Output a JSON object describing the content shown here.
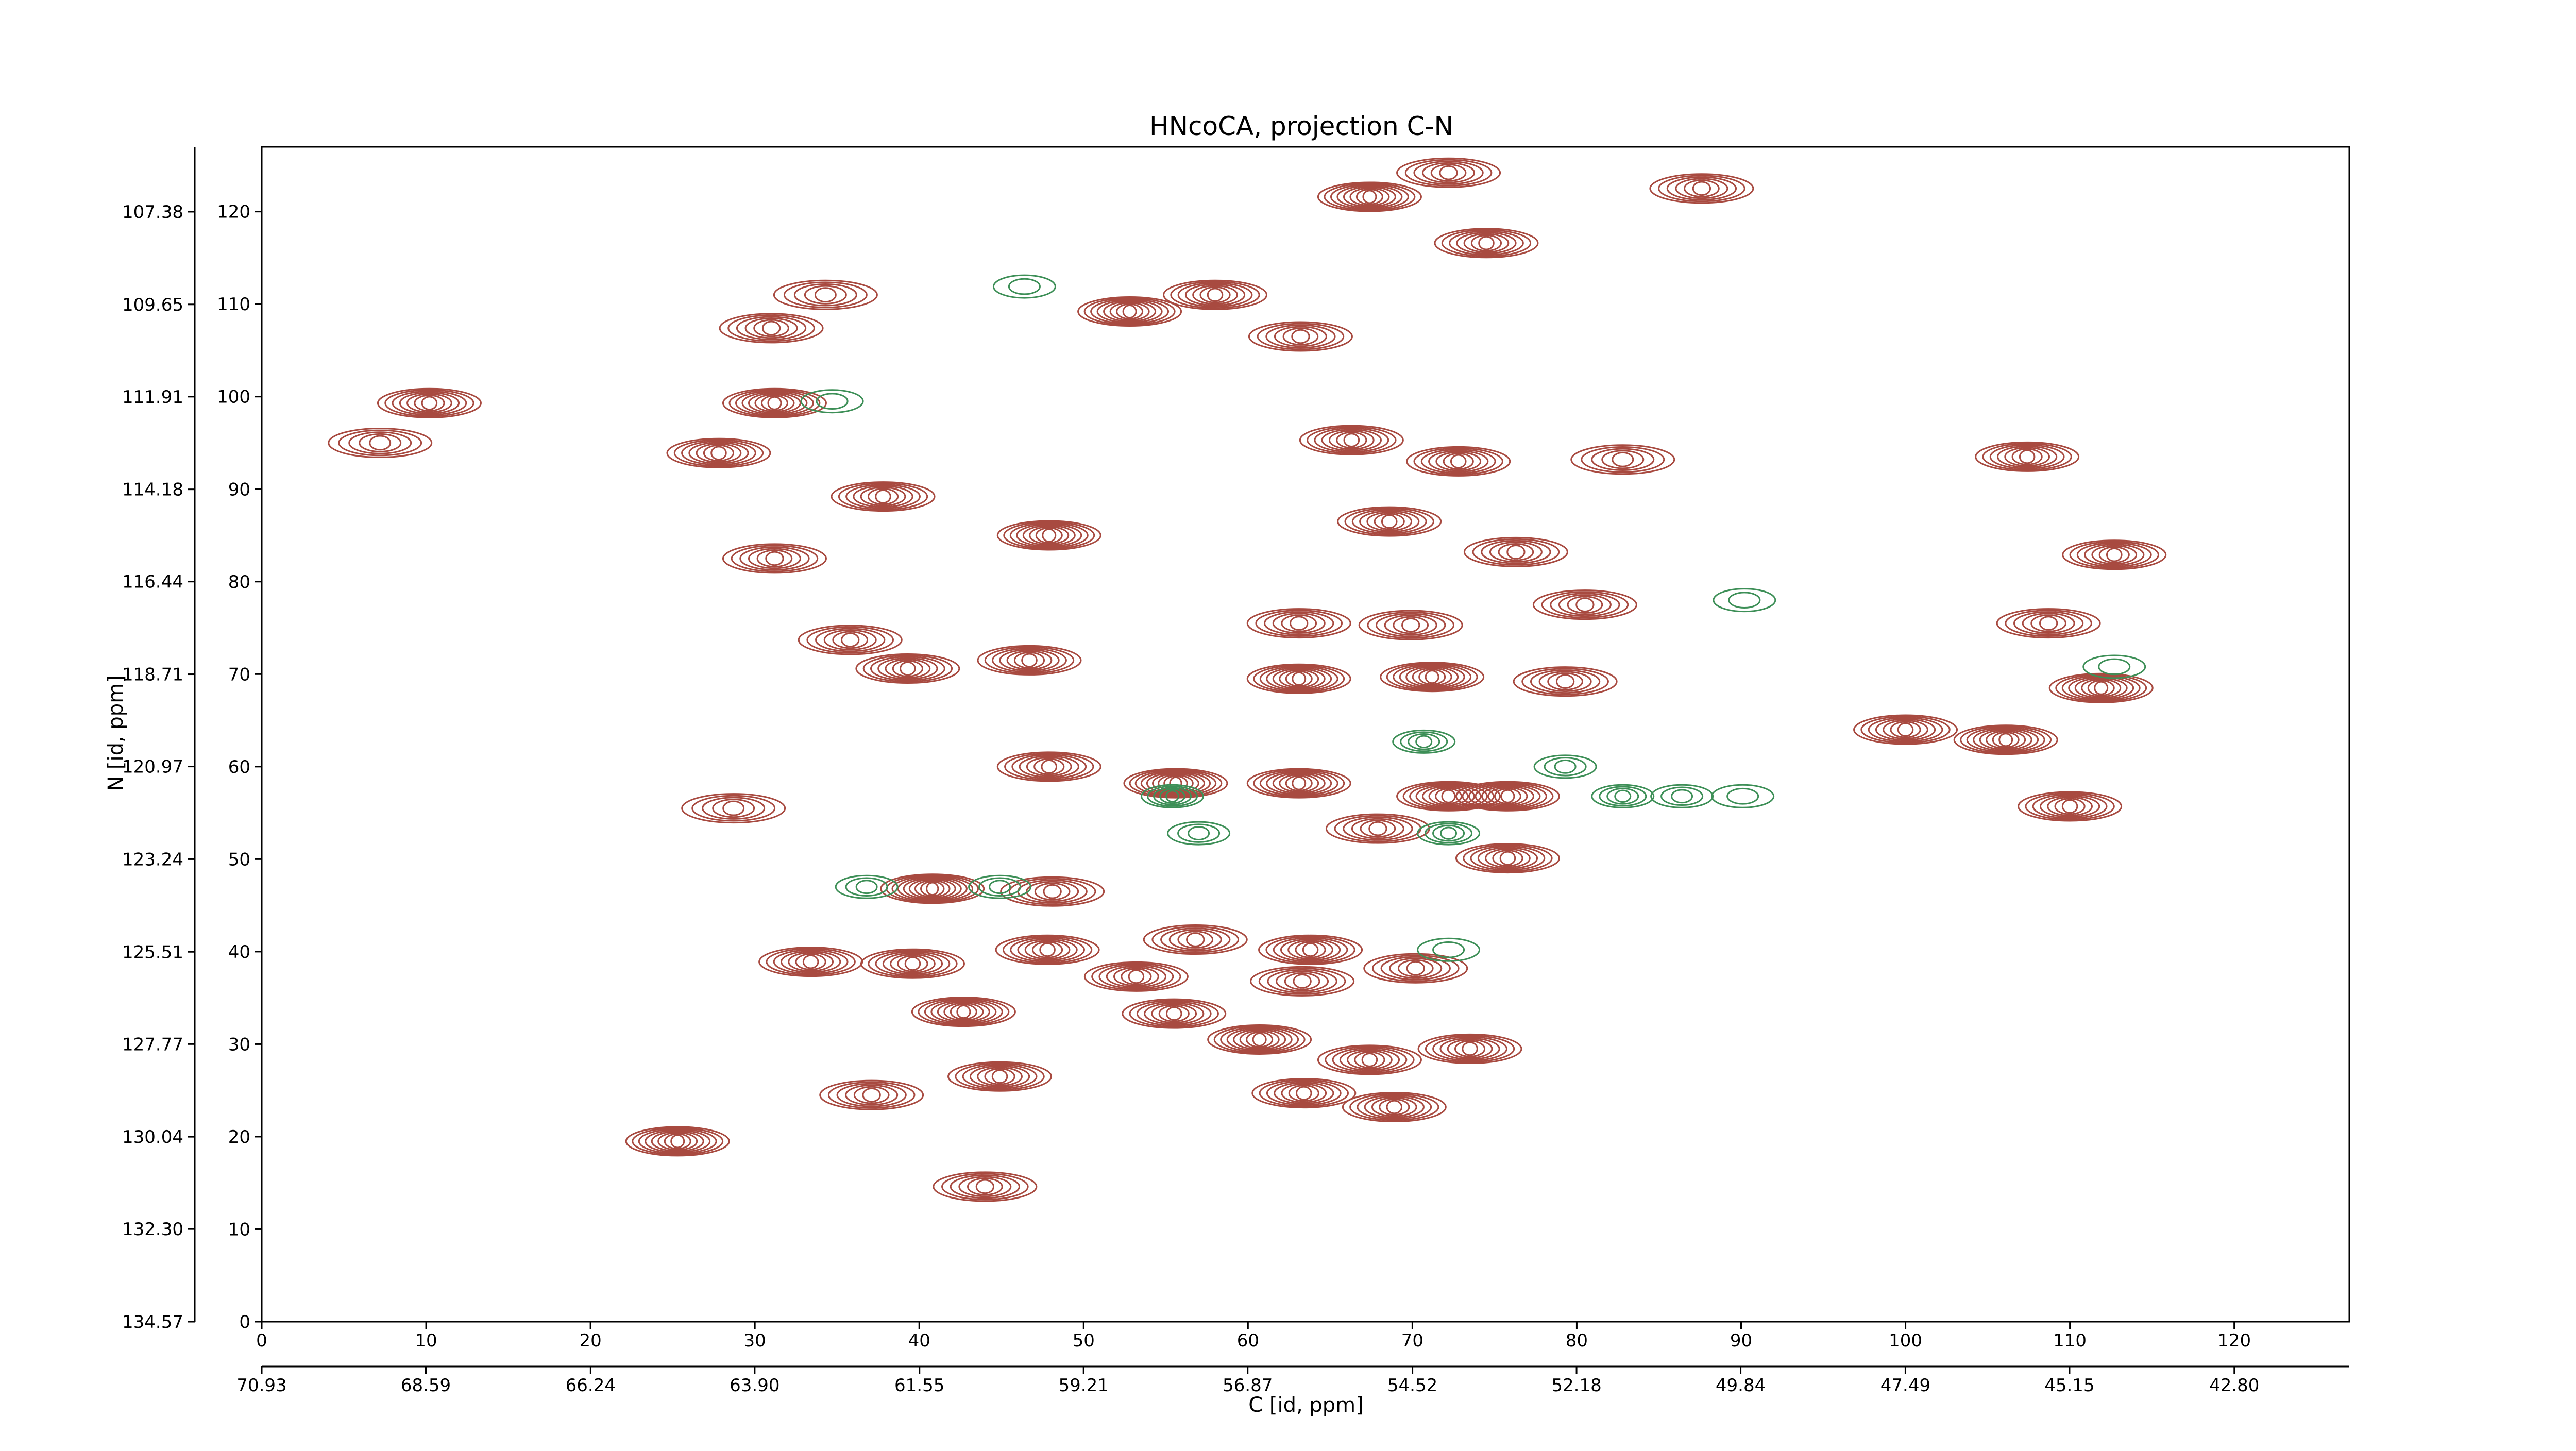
{
  "chart_data": {
    "type": "contour",
    "title": "HNcoCA, projection C-N",
    "xlabel": "C [id, ppm]",
    "ylabel": "N [id, ppm]",
    "xlim": [
      0,
      127
    ],
    "ylim": [
      0,
      127
    ],
    "xticks": [
      0,
      10,
      20,
      30,
      40,
      50,
      60,
      70,
      80,
      90,
      100,
      110,
      120
    ],
    "yticks": [
      0,
      10,
      20,
      30,
      40,
      50,
      60,
      70,
      80,
      90,
      100,
      110,
      120
    ],
    "x2lim": [
      70.93,
      41.16
    ],
    "x2ticks": [
      70.93,
      68.59,
      66.24,
      {
        "value": 63.9,
        "label": "63.90"
      },
      61.55,
      59.21,
      56.87,
      54.52,
      52.18,
      49.84,
      47.49,
      45.15,
      {
        "value": 42.8,
        "label": "42.80"
      }
    ],
    "y2lim": [
      134.57,
      105.79
    ],
    "y2ticks": [
      134.57,
      {
        "value": 132.3,
        "label": "132.30"
      },
      130.04,
      127.77,
      125.51,
      123.24,
      120.97,
      118.71,
      116.44,
      114.18,
      111.91,
      109.65,
      107.38
    ],
    "series": [
      {
        "color": "#a84a40",
        "x": [
          87.6,
          72.2,
          67.4,
          74.5,
          58,
          52.8,
          63.2,
          31,
          34.3,
          31.2,
          10.2,
          7.2,
          27.8,
          37.8,
          47.9,
          66.3,
          72.8,
          82.8,
          107.4,
          68.6,
          76.3,
          31.2,
          112.7,
          80.5,
          108.7,
          63.1,
          69.9,
          35.8,
          39.3,
          46.7,
          63.1,
          71.2,
          79.3,
          111.9,
          100,
          106.1,
          55.6,
          47.9,
          63.1,
          72.2,
          75.8,
          28.7,
          110,
          40.8,
          48.1,
          75.8,
          67.9,
          56.8,
          63.8,
          47.8,
          39.6,
          33.4,
          70.2,
          53.2,
          63.3,
          42.7,
          55.5,
          44.9,
          60.7,
          67.4,
          73.5,
          37.1,
          63.4,
          68.9,
          25.3,
          44
        ],
        "y": [
          122.5,
          124.2,
          121.6,
          116.6,
          111,
          109.2,
          106.5,
          107.4,
          111,
          99.3,
          99.3,
          95,
          93.9,
          89.2,
          85,
          95.3,
          93,
          93.2,
          93.5,
          86.5,
          83.2,
          82.5,
          82.9,
          77.5,
          75.5,
          75.5,
          75.3,
          73.7,
          70.6,
          71.5,
          69.5,
          69.7,
          69.2,
          68.5,
          64,
          62.9,
          58.2,
          60,
          58.2,
          56.8,
          56.8,
          55.5,
          55.7,
          46.8,
          46.5,
          50.1,
          53.3,
          41.3,
          40.2,
          40.2,
          38.7,
          38.9,
          38.2,
          37.3,
          36.8,
          33.5,
          33.3,
          26.5,
          30.5,
          28.3,
          29.5,
          24.5,
          24.7,
          23.2,
          19.5,
          14.6
        ],
        "levels": [
          6,
          6,
          8,
          7,
          7,
          8,
          6,
          6,
          5,
          8,
          7,
          5,
          7,
          7,
          8,
          7,
          7,
          5,
          7,
          7,
          6,
          6,
          7,
          6,
          6,
          6,
          6,
          6,
          7,
          7,
          8,
          8,
          6,
          8,
          7,
          8,
          9,
          7,
          8,
          8,
          8,
          5,
          7,
          9,
          6,
          7,
          6,
          6,
          7,
          7,
          7,
          7,
          6,
          7,
          6,
          8,
          7,
          7,
          8,
          7,
          7,
          6,
          7,
          7,
          8,
          6
        ]
      },
      {
        "color": "#3d8f57",
        "x": [
          55.4,
          36.8,
          44.9,
          70.7,
          79.3,
          82.8,
          86.4,
          90.1,
          46.4,
          34.7,
          90.2,
          112.7,
          57,
          72.2,
          72.2
        ],
        "y": [
          56.8,
          47,
          47,
          62.7,
          60,
          56.8,
          56.8,
          56.8,
          111.9,
          99.5,
          78,
          70.8,
          52.8,
          40.2,
          52.8
        ],
        "levels": [
          5,
          3,
          3,
          4,
          3,
          4,
          3,
          2,
          2,
          2,
          2,
          2,
          3,
          2,
          4
        ]
      }
    ]
  }
}
